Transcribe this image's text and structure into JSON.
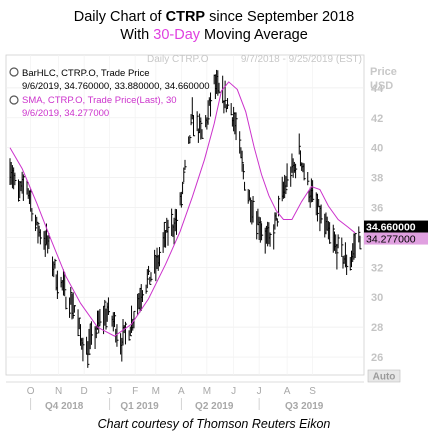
{
  "header": {
    "title_prefix": "Daily Chart of ",
    "ticker": "CTRP",
    "title_suffix": " since September 2018",
    "sub_prefix": "With ",
    "sub_highlight": "30-Day",
    "sub_suffix": " Moving Average"
  },
  "watermark": {
    "left": "Daily CTRP.O",
    "right": "9/7/2018 - 9/25/2019 (EST)"
  },
  "legend": {
    "bar_series": "BarHLC, CTRP.O, Trade Price",
    "bar_values": "9/6/2019, 34.760000, 33.880000, 34.660000",
    "sma_series": "SMA, CTRP.O, Trade Price(Last),  30",
    "sma_values": "9/6/2019, 34.277000"
  },
  "axis": {
    "price_label": "Price",
    "currency": "USD",
    "auto": "Auto"
  },
  "badges": {
    "last_price": "34.660000",
    "sma_value": "34.277000"
  },
  "colors": {
    "bars": "#000000",
    "sma": "#cc33cc",
    "badge_sma_bg": "#e0a0e0"
  },
  "footer": {
    "credit": "Chart courtesy of Thomson Reuters Eikon"
  },
  "chart_data": {
    "type": "bar",
    "subtype": "HLC price bars with 30-day simple moving average",
    "x_month_labels": [
      "O",
      "N",
      "D",
      "J",
      "F",
      "M",
      "A",
      "M",
      "J",
      "J",
      "A",
      "S"
    ],
    "x_quarter_labels": [
      "Q4 2018",
      "Q1 2019",
      "Q2 2019",
      "Q3 2019"
    ],
    "y_ticks": [
      26,
      28,
      30,
      32,
      34,
      36,
      38,
      40,
      42,
      44
    ],
    "ylim": [
      24.8,
      46.2
    ],
    "price_path": [
      [
        0,
        39.0
      ],
      [
        6,
        36.8
      ],
      [
        14,
        37.5
      ],
      [
        22,
        34.6
      ],
      [
        30,
        33.8
      ],
      [
        38,
        31.5
      ],
      [
        46,
        30.2
      ],
      [
        52,
        29.6
      ],
      [
        58,
        27.4
      ],
      [
        63,
        26.5
      ],
      [
        68,
        27.2
      ],
      [
        74,
        28.4
      ],
      [
        80,
        29.0
      ],
      [
        86,
        28.2
      ],
      [
        92,
        27.0
      ],
      [
        97,
        27.8
      ],
      [
        102,
        28.8
      ],
      [
        108,
        30.4
      ],
      [
        114,
        31.2
      ],
      [
        120,
        32.0
      ],
      [
        125,
        33.2
      ],
      [
        130,
        34.5
      ],
      [
        134,
        34.8
      ],
      [
        138,
        35.2
      ],
      [
        141,
        36.6
      ],
      [
        144,
        38.4
      ],
      [
        147,
        40.0
      ],
      [
        150,
        42.1
      ],
      [
        154,
        41.4
      ],
      [
        158,
        40.8
      ],
      [
        163,
        42.2
      ],
      [
        168,
        44.2
      ],
      [
        173,
        43.6
      ],
      [
        178,
        43.0
      ],
      [
        182,
        42.6
      ],
      [
        186,
        41.3
      ],
      [
        190,
        39.3
      ],
      [
        194,
        37.4
      ],
      [
        199,
        36.2
      ],
      [
        204,
        35.2
      ],
      [
        209,
        34.2
      ],
      [
        214,
        33.6
      ],
      [
        219,
        35.0
      ],
      [
        224,
        36.8
      ],
      [
        229,
        38.2
      ],
      [
        234,
        38.6
      ],
      [
        238,
        39.8
      ],
      [
        242,
        38.5
      ],
      [
        246,
        37.2
      ],
      [
        251,
        36.3
      ],
      [
        256,
        35.3
      ],
      [
        262,
        34.2
      ],
      [
        268,
        33.4
      ],
      [
        274,
        32.7
      ],
      [
        279,
        32.2
      ],
      [
        284,
        33.5
      ],
      [
        288,
        34.2
      ]
    ],
    "sma_path": [
      [
        0,
        40.0
      ],
      [
        10,
        38.6
      ],
      [
        22,
        36.3
      ],
      [
        34,
        33.8
      ],
      [
        46,
        31.4
      ],
      [
        58,
        29.6
      ],
      [
        72,
        28.0
      ],
      [
        86,
        27.4
      ],
      [
        100,
        28.2
      ],
      [
        114,
        29.9
      ],
      [
        128,
        32.2
      ],
      [
        140,
        34.4
      ],
      [
        150,
        36.7
      ],
      [
        160,
        39.2
      ],
      [
        168,
        41.6
      ],
      [
        174,
        43.8
      ],
      [
        180,
        44.4
      ],
      [
        187,
        43.9
      ],
      [
        194,
        42.4
      ],
      [
        201,
        40.0
      ],
      [
        207,
        38.2
      ],
      [
        213,
        36.8
      ],
      [
        219,
        35.8
      ],
      [
        225,
        35.2
      ],
      [
        232,
        35.2
      ],
      [
        240,
        36.4
      ],
      [
        248,
        37.4
      ],
      [
        255,
        37.2
      ],
      [
        262,
        36.1
      ],
      [
        270,
        35.2
      ],
      [
        278,
        34.7
      ],
      [
        284,
        34.3
      ]
    ],
    "last_close": 34.66,
    "last_sma": 34.277
  }
}
